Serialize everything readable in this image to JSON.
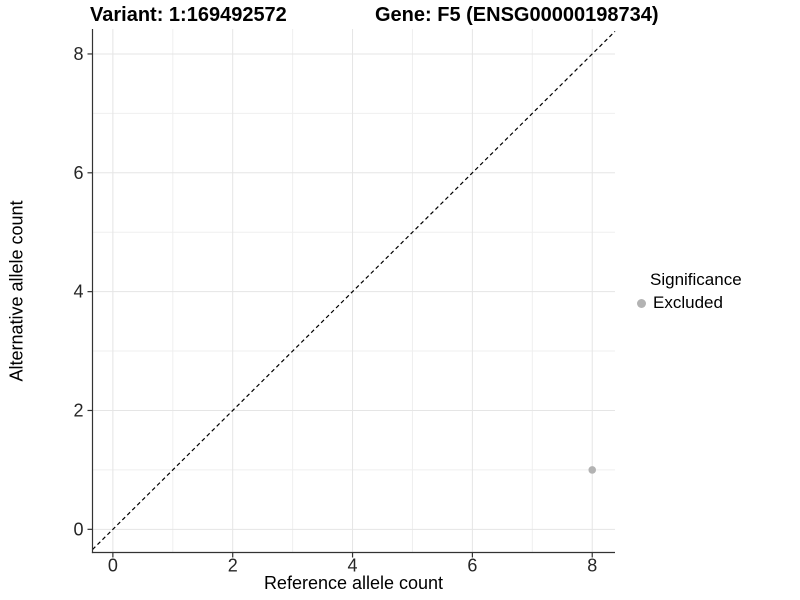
{
  "chart_data": {
    "type": "scatter",
    "title_left": "Variant: 1:169492572",
    "title_right": "Gene: F5 (ENSG00000198734)",
    "xlabel": "Reference allele count",
    "ylabel": "Alternative allele count",
    "xlim": [
      -0.34,
      8.38
    ],
    "ylim": [
      -0.39,
      8.42
    ],
    "x_ticks": [
      "0",
      "2",
      "4",
      "6",
      "8"
    ],
    "y_ticks": [
      "0",
      "2",
      "4",
      "6",
      "8"
    ],
    "x_tick_values": [
      0,
      2,
      4,
      6,
      8
    ],
    "y_tick_values": [
      0,
      2,
      4,
      6,
      8
    ],
    "minor_grid_values": [
      1,
      3,
      5,
      7
    ],
    "grid": true,
    "identity_line": {
      "present": true,
      "equation": "y = x",
      "style": "dashed",
      "color": "#000000"
    },
    "series": [
      {
        "name": "Excluded",
        "color": "#b3b3b3",
        "points": [
          {
            "x": 8,
            "y": 1
          }
        ]
      }
    ],
    "legend": {
      "title": "Significance",
      "position": "right",
      "items": [
        {
          "label": "Excluded",
          "color": "#b3b3b3"
        }
      ]
    }
  }
}
